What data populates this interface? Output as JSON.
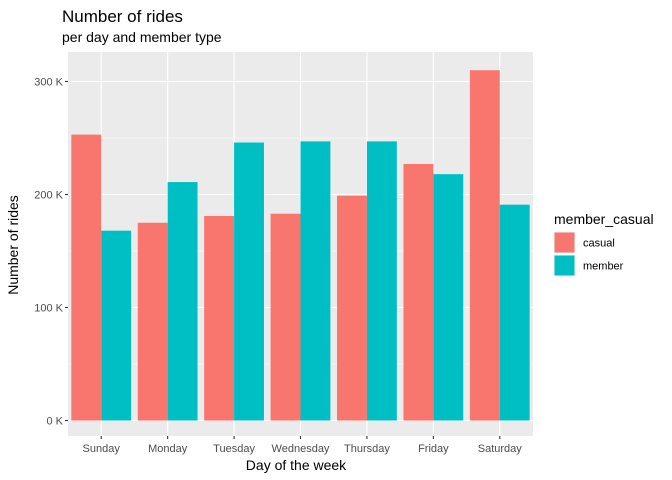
{
  "chart_data": {
    "type": "bar",
    "title": "Number of rides",
    "subtitle": "per day and member type",
    "xlabel": "Day of the week",
    "ylabel": "Number of rides",
    "categories": [
      "Sunday",
      "Monday",
      "Tuesday",
      "Wednesday",
      "Thursday",
      "Friday",
      "Saturday"
    ],
    "series": [
      {
        "name": "casual",
        "color": "#F8766D",
        "values": [
          253000,
          175000,
          181000,
          183000,
          199000,
          227000,
          310000
        ]
      },
      {
        "name": "member",
        "color": "#00BFC4",
        "values": [
          168000,
          211000,
          246000,
          247000,
          247000,
          218000,
          191000
        ]
      }
    ],
    "ylim": [
      0,
      300000
    ],
    "y_ticks": [
      {
        "value": 0,
        "label": "0 K"
      },
      {
        "value": 100000,
        "label": "100 K"
      },
      {
        "value": 200000,
        "label": "200 K"
      },
      {
        "value": 300000,
        "label": "300 K"
      }
    ],
    "legend": {
      "title": "member_casual",
      "position": "right"
    },
    "grid": true,
    "panel_background": "#EBEBEB"
  }
}
